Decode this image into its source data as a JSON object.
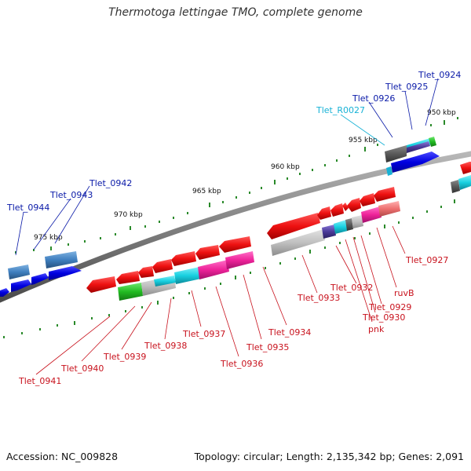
{
  "title": "Thermotoga lettingae TMO, complete genome",
  "footer": {
    "accession": "Accession: NC_009828",
    "summary": "Topology: circular; Length: 2,135,342 bp; Genes: 2,091"
  },
  "colors": {
    "backbone": "#808080",
    "forward_gene": "#0000e0",
    "forward_cds": "#3f7fbf",
    "reverse_gene": "#ee1111",
    "tick": "#2a8a2a",
    "label_forward": "#0a1aa8",
    "label_rna": "#17b2d6",
    "label_reverse": "#c8121d"
  },
  "scale_labels": [
    "950 kbp",
    "955 kbp",
    "960 kbp",
    "965 kbp",
    "970 kbp",
    "975 kbp"
  ],
  "forward_labels": [
    "Tlet_0924",
    "Tlet_0925",
    "Tlet_0926",
    "Tlet_R0027",
    "Tlet_0942",
    "Tlet_0943",
    "Tlet_0944"
  ],
  "reverse_labels": [
    "Tlet_0927",
    "ruvB",
    "Tlet_0929",
    "Tlet_0930",
    "pnk",
    "Tlet_0932",
    "Tlet_0933",
    "Tlet_0934",
    "Tlet_0935",
    "Tlet_0936",
    "Tlet_0937",
    "Tlet_0938",
    "Tlet_0939",
    "Tlet_0940",
    "Tlet_0941"
  ]
}
